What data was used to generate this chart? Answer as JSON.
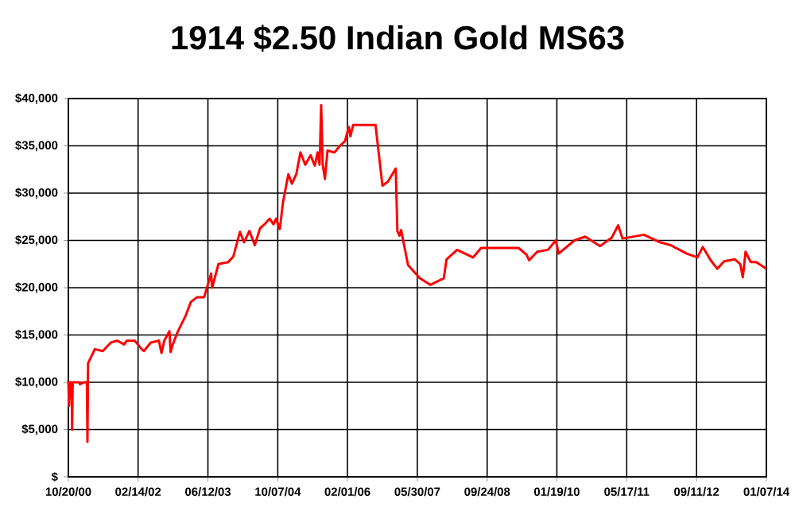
{
  "chart_data": {
    "type": "line",
    "title": "1914 $2.50 Indian Gold MS63",
    "color": "#ff0000",
    "marker": "none",
    "line_style": "solid",
    "grid": true,
    "x": [
      "2000-10-20",
      "2000-10-24",
      "2000-10-31",
      "2000-11-11",
      "2000-11-15",
      "2000-11-19",
      "2001-01-02",
      "2001-01-08",
      "2001-02-07",
      "2001-02-25",
      "2001-03-01",
      "2001-03-05",
      "2001-04-21",
      "2001-06-15",
      "2001-08-10",
      "2001-09-23",
      "2001-11-10",
      "2001-11-28",
      "2002-01-22",
      "2002-03-11",
      "2002-03-26",
      "2002-05-13",
      "2002-07-08",
      "2002-07-26",
      "2002-08-14",
      "2002-09-19",
      "2002-09-27",
      "2002-10-12",
      "2002-11-14",
      "2003-01-08",
      "2003-02-14",
      "2003-03-30",
      "2003-05-17",
      "2003-07-04",
      "2003-07-11",
      "2003-08-24",
      "2003-10-30",
      "2003-12-05",
      "2004-01-19",
      "2004-02-17",
      "2004-03-25",
      "2004-05-01",
      "2004-06-07",
      "2004-07-14",
      "2004-08-12",
      "2004-09-07",
      "2004-09-25",
      "2004-10-21",
      "2004-11-12",
      "2004-12-19",
      "2005-01-13",
      "2005-02-12",
      "2005-03-13",
      "2005-04-15",
      "2005-05-22",
      "2005-06-20",
      "2005-07-09",
      "2005-07-23",
      "2005-08-03",
      "2005-08-14",
      "2005-08-29",
      "2005-09-16",
      "2005-11-03",
      "2005-12-10",
      "2006-01-15",
      "2006-02-10",
      "2006-02-21",
      "2006-03-12",
      "2006-08-14",
      "2006-10-01",
      "2006-11-07",
      "2007-01-01",
      "2007-01-12",
      "2007-01-27",
      "2007-02-07",
      "2007-03-27",
      "2007-06-16",
      "2007-08-29",
      "2007-11-29",
      "2007-12-18",
      "2008-02-29",
      "2008-06-18",
      "2008-08-13",
      "2009-04-29",
      "2009-06-23",
      "2009-07-11",
      "2009-09-05",
      "2009-11-18",
      "2010-01-12",
      "2010-01-31",
      "2010-05-21",
      "2010-08-03",
      "2010-11-14",
      "2011-02-03",
      "2011-03-19",
      "2011-04-18",
      "2011-09-13",
      "2012-01-02",
      "2012-03-16",
      "2012-07-05",
      "2012-09-17",
      "2012-10-24",
      "2012-12-18",
      "2013-02-01",
      "2013-03-21",
      "2013-06-03",
      "2013-07-10",
      "2013-07-28",
      "2013-08-16",
      "2013-09-21",
      "2013-10-28",
      "2014-01-07"
    ],
    "values": [
      10100,
      7500,
      10000,
      10000,
      5000,
      10000,
      10000,
      9800,
      10000,
      10000,
      3700,
      12000,
      13500,
      13300,
      14200,
      14400,
      14000,
      14400,
      14400,
      13500,
      13300,
      14200,
      14400,
      13100,
      14400,
      15400,
      13200,
      14000,
      15300,
      17000,
      18500,
      19000,
      19000,
      21500,
      20000,
      22500,
      22700,
      23300,
      25900,
      24800,
      26000,
      24500,
      26300,
      26800,
      27300,
      26700,
      27300,
      26200,
      29000,
      32000,
      31000,
      32000,
      34300,
      33000,
      34000,
      32900,
      34300,
      33000,
      39300,
      33000,
      31500,
      34500,
      34300,
      35000,
      35500,
      37000,
      36000,
      37200,
      37200,
      30800,
      31200,
      32600,
      26000,
      25500,
      26100,
      22400,
      21000,
      20300,
      21000,
      23000,
      24000,
      23200,
      24200,
      24200,
      23500,
      22900,
      23800,
      24000,
      25000,
      23600,
      25000,
      25400,
      24400,
      25300,
      26600,
      25200,
      25600,
      24800,
      24500,
      23600,
      23200,
      24300,
      22900,
      22000,
      22800,
      23000,
      22500,
      21100,
      23800,
      22700,
      22700,
      22000
    ],
    "xlim": [
      "2000-10-20",
      "2014-01-07"
    ],
    "xticks": [
      {
        "value": "2000-10-20",
        "label": "10/20/00"
      },
      {
        "value": "2002-02-14",
        "label": "02/14/02"
      },
      {
        "value": "2003-06-12",
        "label": "06/12/03"
      },
      {
        "value": "2004-10-07",
        "label": "10/07/04"
      },
      {
        "value": "2006-02-01",
        "label": "02/01/06"
      },
      {
        "value": "2007-05-30",
        "label": "05/30/07"
      },
      {
        "value": "2008-09-24",
        "label": "09/24/08"
      },
      {
        "value": "2010-01-19",
        "label": "01/19/10"
      },
      {
        "value": "2011-05-17",
        "label": "05/17/11"
      },
      {
        "value": "2012-09-11",
        "label": "09/11/12"
      },
      {
        "value": "2014-01-07",
        "label": "01/07/14"
      }
    ],
    "ylim": [
      0,
      40000
    ],
    "yticks": [
      {
        "value": 0,
        "label": "$"
      },
      {
        "value": 5000,
        "label": "$5,000"
      },
      {
        "value": 10000,
        "label": "$10,000"
      },
      {
        "value": 15000,
        "label": "$15,000"
      },
      {
        "value": 20000,
        "label": "$20,000"
      },
      {
        "value": 25000,
        "label": "$25,000"
      },
      {
        "value": 30000,
        "label": "$30,000"
      },
      {
        "value": 35000,
        "label": "$35,000"
      },
      {
        "value": 40000,
        "label": "$40,000"
      }
    ]
  }
}
